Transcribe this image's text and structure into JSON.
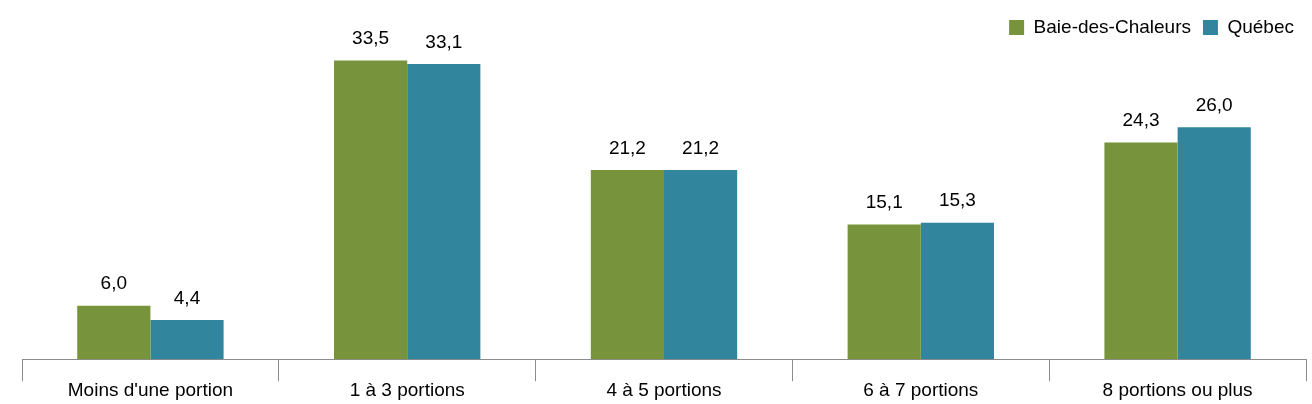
{
  "chart_data": {
    "type": "bar",
    "categories": [
      "Moins d'une portion",
      "1 à 3 portions",
      "4 à 5 portions",
      "6 à 7 portions",
      "8 portions ou plus"
    ],
    "series": [
      {
        "name": "Baie-des-Chaleurs",
        "color": "#77933c",
        "values": [
          6.0,
          33.5,
          21.2,
          15.1,
          24.3
        ],
        "value_labels": [
          "6,0",
          "33,5",
          "21,2",
          "15,1",
          "24,3"
        ]
      },
      {
        "name": "Québec",
        "color": "#31859c",
        "values": [
          4.4,
          33.1,
          21.2,
          15.3,
          26.0
        ],
        "value_labels": [
          "4,4",
          "33,1",
          "21,2",
          "15,3",
          "26,0"
        ]
      }
    ],
    "legend": "top right",
    "tick_labels": "x",
    "grid": false
  }
}
